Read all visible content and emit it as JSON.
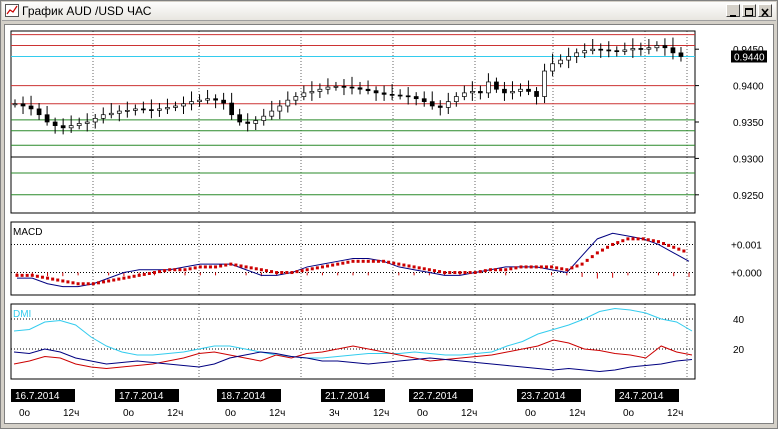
{
  "window": {
    "title": "График AUD /USD  ЧАС",
    "controls": {
      "minimize_icon": "minimize-icon",
      "maximize_icon": "maximize-icon",
      "close_icon": "close-icon"
    }
  },
  "colors": {
    "bull": "#000000",
    "bear": "#000000",
    "hline_red": "#cc3333",
    "hline_green": "#2a8a2a",
    "current_price_line": "#33ccee",
    "macd_line": "#000080",
    "signal": "#cc0000",
    "dmi_adx": "#33ccee",
    "dmi_plus": "#cc0000",
    "dmi_minus": "#000080"
  },
  "panels": {
    "price": {
      "current_price_tag": "0.9440",
      "tick_labels": [
        "0.9450",
        "0.9400",
        "0.9350",
        "0.9300",
        "0.9250"
      ]
    },
    "macd": {
      "label": "MACD",
      "tick_labels": [
        "+0.001",
        "+0.000"
      ]
    },
    "dmi": {
      "label": "DMI",
      "tick_labels": [
        "40",
        "20"
      ]
    }
  },
  "time_axis": {
    "dates": [
      "16.7.2014",
      "17.7.2014",
      "18.7.2014",
      "21.7.2014",
      "22.7.2014",
      "23.7.2014",
      "24.7.2014"
    ],
    "hour_labels": [
      [
        "0о",
        "12ч"
      ],
      [
        "0о",
        "12ч"
      ],
      [
        "0о",
        "12ч"
      ],
      [
        "3ч",
        "12ч"
      ],
      [
        "0о",
        "12ч"
      ],
      [
        "0о",
        "12ч"
      ],
      [
        "0о",
        "12ч"
      ]
    ]
  },
  "chart_data": [
    {
      "type": "candlestick",
      "title": "График AUD /USD  ЧАС",
      "ylim": [
        0.9225,
        0.9475
      ],
      "current": 0.944,
      "series": [
        {
          "name": "AUD/USD",
          "close": [
            0.9375,
            0.9372,
            0.9368,
            0.936,
            0.935,
            0.9345,
            0.9342,
            0.9345,
            0.9348,
            0.935,
            0.9355,
            0.936,
            0.9362,
            0.9365,
            0.9366,
            0.9368,
            0.9367,
            0.9366,
            0.9368,
            0.937,
            0.9372,
            0.9375,
            0.9378,
            0.938,
            0.9382,
            0.938,
            0.9376,
            0.936,
            0.935,
            0.9348,
            0.9352,
            0.9358,
            0.9365,
            0.9372,
            0.938,
            0.9385,
            0.939,
            0.9392,
            0.9395,
            0.9398,
            0.9399,
            0.9398,
            0.9397,
            0.9395,
            0.9393,
            0.939,
            0.9388,
            0.9387,
            0.9386,
            0.9385,
            0.9382,
            0.9378,
            0.9372,
            0.937,
            0.9378,
            0.9385,
            0.939,
            0.9392,
            0.939,
            0.9405,
            0.9395,
            0.939,
            0.9392,
            0.9395,
            0.9392,
            0.9385,
            0.942,
            0.943,
            0.9435,
            0.944,
            0.9445,
            0.9448,
            0.945,
            0.9449,
            0.9448,
            0.9447,
            0.9449,
            0.9451,
            0.945,
            0.9452,
            0.9455,
            0.9452,
            0.9445,
            0.944
          ]
        }
      ]
    },
    {
      "type": "line",
      "title": "MACD",
      "ylim": [
        -0.0008,
        0.0018
      ],
      "series": [
        {
          "name": "MACD",
          "values": [
            -0.0002,
            -0.0002,
            -0.0004,
            -0.0005,
            -0.0005,
            -0.0004,
            -0.0002,
            0.0,
            0.0001,
            0.0001,
            0.0001,
            0.0002,
            0.0003,
            0.0003,
            0.0003,
            0.0001,
            -0.0001,
            -0.0001,
            0.0,
            0.0002,
            0.0003,
            0.0004,
            0.0005,
            0.0005,
            0.0004,
            0.0002,
            0.0001,
            0.0,
            -0.0001,
            -0.0001,
            0.0,
            0.0001,
            0.0002,
            0.0002,
            0.0002,
            0.0001,
            0.0,
            0.0006,
            0.0012,
            0.0014,
            0.0013,
            0.0012,
            0.001,
            0.0007,
            0.0004
          ]
        },
        {
          "name": "Signal",
          "values": [
            -0.0001,
            -0.0001,
            -0.0002,
            -0.0003,
            -0.0004,
            -0.0004,
            -0.0003,
            -0.0002,
            -0.0001,
            0.0,
            0.0001,
            0.0001,
            0.0002,
            0.0002,
            0.0003,
            0.0002,
            0.0001,
            0.0,
            0.0,
            0.0001,
            0.0002,
            0.0003,
            0.0004,
            0.0004,
            0.0004,
            0.0003,
            0.0002,
            0.0001,
            0.0,
            0.0,
            0.0,
            0.0001,
            0.0001,
            0.0002,
            0.0002,
            0.0002,
            0.0001,
            0.0003,
            0.0007,
            0.001,
            0.0012,
            0.0012,
            0.0011,
            0.0009,
            0.0007
          ]
        }
      ]
    },
    {
      "type": "line",
      "title": "DMI",
      "ylim": [
        0,
        50
      ],
      "series": [
        {
          "name": "ADX",
          "values": [
            32,
            33,
            38,
            39,
            36,
            28,
            22,
            18,
            16,
            16,
            17,
            18,
            20,
            22,
            22,
            20,
            18,
            16,
            15,
            14,
            14,
            15,
            16,
            17,
            17,
            17,
            18,
            17,
            16,
            16,
            17,
            18,
            22,
            25,
            30,
            33,
            36,
            40,
            45,
            47,
            46,
            44,
            40,
            38,
            32
          ]
        },
        {
          "name": "+DI",
          "values": [
            10,
            12,
            15,
            14,
            10,
            8,
            7,
            8,
            9,
            10,
            12,
            14,
            17,
            18,
            16,
            14,
            12,
            16,
            14,
            17,
            18,
            20,
            22,
            20,
            18,
            16,
            14,
            12,
            13,
            14,
            15,
            16,
            18,
            20,
            22,
            26,
            24,
            20,
            19,
            17,
            16,
            14,
            22,
            18,
            16
          ]
        },
        {
          "name": "-DI",
          "values": [
            18,
            17,
            20,
            18,
            14,
            12,
            10,
            11,
            12,
            11,
            10,
            9,
            8,
            10,
            14,
            16,
            18,
            17,
            15,
            14,
            12,
            12,
            11,
            10,
            11,
            12,
            13,
            14,
            13,
            12,
            11,
            10,
            9,
            8,
            7,
            6,
            7,
            6,
            5,
            6,
            8,
            9,
            10,
            12,
            13
          ]
        }
      ]
    }
  ]
}
